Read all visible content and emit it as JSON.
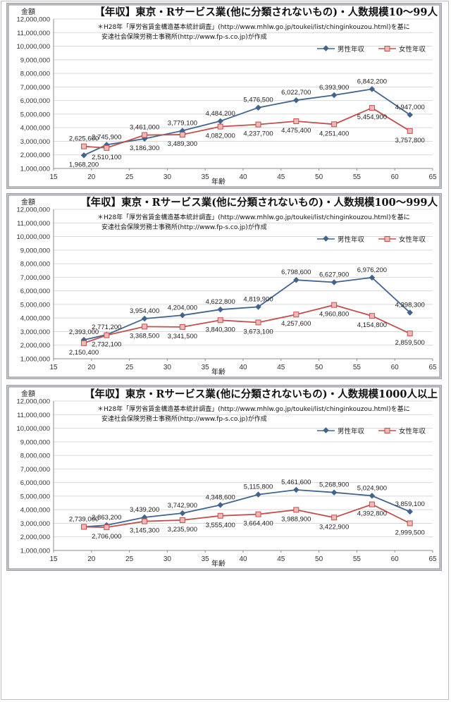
{
  "common": {
    "ylabel": "金額",
    "xlabel": "年齢",
    "note_line1": "＊H28年「厚労省賃金構造基本統計調査」(http://www.mhlw.go.jp/toukei/list/chinginkouzou.html)を基に",
    "note_line2": "安達社会保険労務士事務所(http://www.fp-s.co.jp)が作成",
    "legend_male": "男性年収",
    "legend_female": "女性年収",
    "colors": {
      "male": "#41648f",
      "female": "#c0504d",
      "female_fill": "#f2b8b6",
      "grid": "#d9d9d9"
    }
  },
  "chart_data": [
    {
      "type": "line",
      "title": "【年収】東京・Rサービス業(他に分類されないもの)・人数規模10～99人",
      "xlim": [
        15,
        65
      ],
      "ylim": [
        1000000,
        12000000
      ],
      "x_ticks": [
        15,
        20,
        25,
        30,
        35,
        40,
        45,
        50,
        55,
        60,
        65
      ],
      "y_ticks": [
        1000000,
        2000000,
        3000000,
        4000000,
        5000000,
        6000000,
        7000000,
        8000000,
        9000000,
        10000000,
        11000000,
        12000000
      ],
      "y_tick_labels": [
        "1,000,000",
        "2,000,000",
        "3,000,000",
        "4,000,000",
        "5,000,000",
        "6,000,000",
        "7,000,000",
        "8,000,000",
        "9,000,000",
        "10,000,000",
        "11,000,000",
        "12,000,000"
      ],
      "series": [
        {
          "name": "男性年収",
          "x": [
            19,
            22,
            27,
            32,
            37,
            42,
            47,
            52,
            57,
            62
          ],
          "values": [
            1968200,
            2745900,
            3186300,
            3779100,
            4484200,
            5476500,
            6022700,
            6393900,
            6842200,
            4947000
          ],
          "labels": [
            "1,968,200",
            "2,745,900",
            "3,186,300",
            "3,779,100",
            "4,484,200",
            "5,476,500",
            "6,022,700",
            "6,393,900",
            "6,842,200",
            "4,947,000"
          ]
        },
        {
          "name": "女性年収",
          "x": [
            19,
            22,
            27,
            32,
            37,
            42,
            47,
            52,
            57,
            62
          ],
          "values": [
            2625600,
            2510100,
            3461000,
            3489300,
            4082000,
            4237700,
            4475400,
            4251400,
            5454900,
            3757800
          ],
          "labels": [
            "2,625,600",
            "2,510,100",
            "3,461,000",
            "3,489,300",
            "4,082,000",
            "4,237,700",
            "4,475,400",
            "4,251,400",
            "5,454,900",
            "3,757,800"
          ]
        }
      ]
    },
    {
      "type": "line",
      "title": "【年収】東京・Rサービス業(他に分類されないもの)・人数規模100～999人",
      "xlim": [
        15,
        65
      ],
      "ylim": [
        1000000,
        12000000
      ],
      "x_ticks": [
        15,
        20,
        25,
        30,
        35,
        40,
        45,
        50,
        55,
        60,
        65
      ],
      "y_ticks": [
        1000000,
        2000000,
        3000000,
        4000000,
        5000000,
        6000000,
        7000000,
        8000000,
        9000000,
        10000000,
        11000000,
        12000000
      ],
      "y_tick_labels": [
        "1,000,000",
        "2,000,000",
        "3,000,000",
        "4,000,000",
        "5,000,000",
        "6,000,000",
        "7,000,000",
        "8,000,000",
        "9,000,000",
        "10,000,000",
        "11,000,000",
        "12,000,000"
      ],
      "series": [
        {
          "name": "男性年収",
          "x": [
            19,
            22,
            27,
            32,
            37,
            42,
            47,
            52,
            57,
            62
          ],
          "values": [
            2393000,
            2771200,
            3954400,
            4204000,
            4622800,
            4819900,
            6798600,
            6627900,
            6976200,
            4398300
          ],
          "labels": [
            "2,393,000",
            "2,771,200",
            "3,954,400",
            "4,204,000",
            "4,622,800",
            "4,819,900",
            "6,798,600",
            "6,627,900",
            "6,976,200",
            "4,398,300"
          ]
        },
        {
          "name": "女性年収",
          "x": [
            19,
            22,
            27,
            32,
            37,
            42,
            47,
            52,
            57,
            62
          ],
          "values": [
            2150400,
            2732100,
            3368500,
            3341500,
            3840300,
            3673100,
            4257600,
            4960800,
            4154800,
            2859500
          ],
          "labels": [
            "2,150,400",
            "2,732,100",
            "3,368,500",
            "3,341,500",
            "3,840,300",
            "3,673,100",
            "4,257,600",
            "4,960,800",
            "4,154,800",
            "2,859,500"
          ]
        }
      ]
    },
    {
      "type": "line",
      "title": "【年収】東京・Rサービス業(他に分類されないもの)・人数規模1000人以上",
      "xlim": [
        15,
        65
      ],
      "ylim": [
        1000000,
        12000000
      ],
      "x_ticks": [
        15,
        20,
        25,
        30,
        35,
        40,
        45,
        50,
        55,
        60,
        65
      ],
      "y_ticks": [
        1000000,
        2000000,
        3000000,
        4000000,
        5000000,
        6000000,
        7000000,
        8000000,
        9000000,
        10000000,
        11000000,
        12000000
      ],
      "y_tick_labels": [
        "1,000,000",
        "2,000,000",
        "3,000,000",
        "4,000,000",
        "5,000,000",
        "6,000,000",
        "7,000,000",
        "8,000,000",
        "9,000,000",
        "10,000,000",
        "11,000,000",
        "12,000,000"
      ],
      "series": [
        {
          "name": "男性年収",
          "x": [
            19,
            22,
            27,
            32,
            37,
            42,
            47,
            52,
            57,
            62
          ],
          "values": [
            2739000,
            2863200,
            3439200,
            3742900,
            4348600,
            5115800,
            5461600,
            5268900,
            5024900,
            3859100
          ],
          "labels": [
            "2,739,000",
            "2,863,200",
            "3,439,200",
            "3,742,900",
            "4,348,600",
            "5,115,800",
            "5,461,600",
            "5,268,900",
            "5,024,900",
            "3,859,100"
          ]
        },
        {
          "name": "女性年収",
          "x": [
            19,
            22,
            27,
            32,
            37,
            42,
            47,
            52,
            57,
            62
          ],
          "values": [
            2739000,
            2706000,
            3145300,
            3235900,
            3555400,
            3664400,
            3988900,
            3422900,
            4392800,
            2999500
          ],
          "labels": [
            "",
            "2,706,000",
            "3,145,300",
            "3,235,900",
            "3,555,400",
            "3,664,400",
            "3,988,900",
            "3,422,900",
            "4,392,800",
            "2,999,500"
          ]
        }
      ]
    }
  ]
}
